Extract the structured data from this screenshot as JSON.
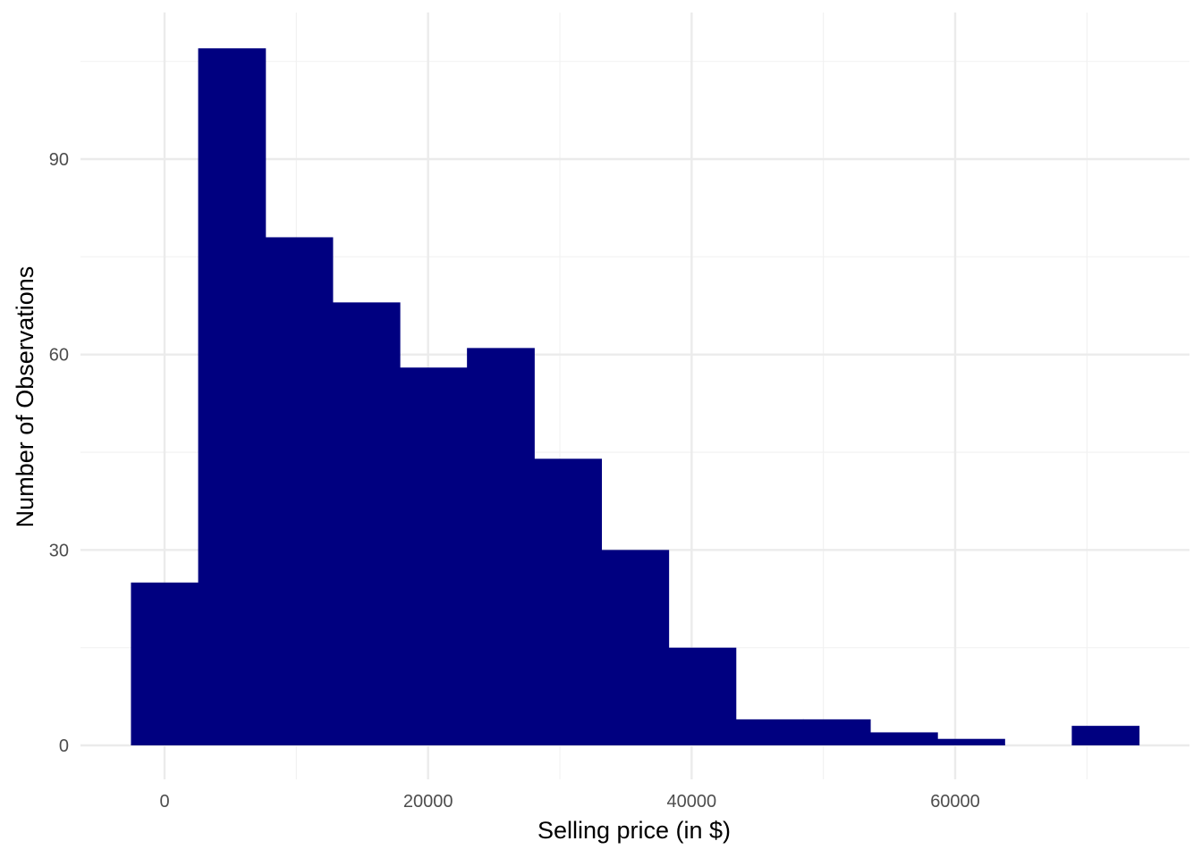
{
  "chart_data": {
    "type": "bar",
    "subtype": "histogram",
    "title": "",
    "xlabel": "Selling price (in $)",
    "ylabel": "Number of Observations",
    "xlim": [
      -5000,
      77500
    ],
    "ylim": [
      -4,
      112
    ],
    "x_ticks": [
      0,
      20000,
      40000,
      60000
    ],
    "y_ticks": [
      0,
      30,
      60,
      90
    ],
    "grid": true,
    "legend": "none",
    "bar_color": "#000080",
    "bins": [
      {
        "x0": -2550,
        "x1": 2550,
        "count": 25
      },
      {
        "x0": 2550,
        "x1": 7650,
        "count": 107
      },
      {
        "x0": 7650,
        "x1": 12750,
        "count": 78
      },
      {
        "x0": 12750,
        "x1": 17850,
        "count": 68
      },
      {
        "x0": 17850,
        "x1": 22950,
        "count": 58
      },
      {
        "x0": 22950,
        "x1": 28050,
        "count": 61
      },
      {
        "x0": 28050,
        "x1": 33150,
        "count": 44
      },
      {
        "x0": 33150,
        "x1": 38250,
        "count": 30
      },
      {
        "x0": 38250,
        "x1": 43350,
        "count": 15
      },
      {
        "x0": 43350,
        "x1": 48450,
        "count": 4
      },
      {
        "x0": 48450,
        "x1": 53550,
        "count": 4
      },
      {
        "x0": 53550,
        "x1": 58650,
        "count": 2
      },
      {
        "x0": 58650,
        "x1": 63750,
        "count": 1
      },
      {
        "x0": 63750,
        "x1": 68850,
        "count": 0
      },
      {
        "x0": 68850,
        "x1": 73950,
        "count": 3
      }
    ]
  }
}
